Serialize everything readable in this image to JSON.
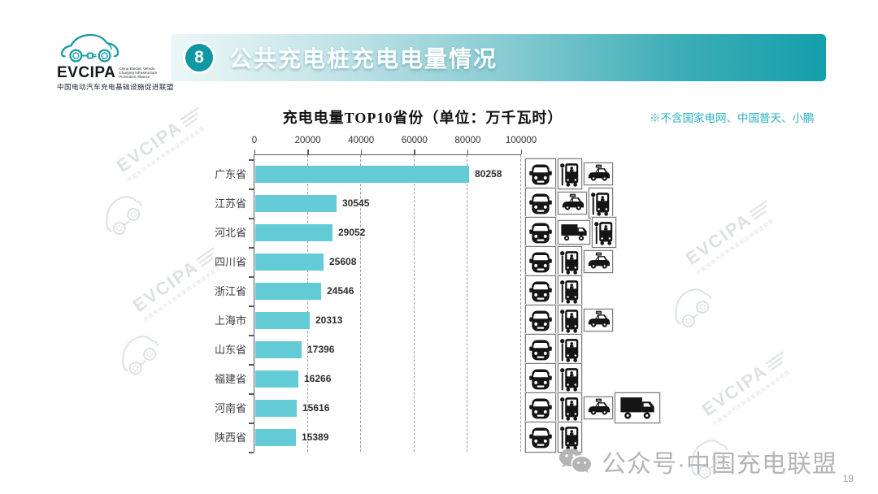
{
  "logo": {
    "brand": "EVCIPA",
    "tagline_lines": [
      "China Electric Vehicle",
      "Charging Infrastructure",
      "Promotion Alliance"
    ],
    "subtitle_cn": "中国电动汽车充电基础设施促进联盟"
  },
  "header": {
    "badge": "8",
    "title": "公共充电桩充电电量情况",
    "accent_color": "#0d98a3"
  },
  "note": "※不含国家电网、中国普天、小鹏",
  "chart_data": {
    "type": "bar",
    "orientation": "horizontal",
    "title": "充电电量TOP10省份（单位：万千瓦时）",
    "unit": "万千瓦时",
    "xlim": [
      0,
      100000
    ],
    "x_ticks": [
      0,
      20000,
      40000,
      60000,
      80000,
      100000
    ],
    "grid": "dashed-vertical",
    "bar_color": "#63cbd5",
    "categories": [
      "广东省",
      "江苏省",
      "河北省",
      "四川省",
      "浙江省",
      "上海市",
      "山东省",
      "福建省",
      "河南省",
      "陕西省"
    ],
    "values": [
      80258,
      30545,
      29052,
      25608,
      24546,
      20313,
      17396,
      16266,
      15616,
      15389
    ],
    "rows": [
      {
        "province": "广东省",
        "value": 80258,
        "icons": [
          "car",
          "bus",
          "taxi"
        ]
      },
      {
        "province": "江苏省",
        "value": 30545,
        "icons": [
          "car",
          "taxi",
          "bus"
        ]
      },
      {
        "province": "河北省",
        "value": 29052,
        "icons": [
          "car",
          "truck",
          "bus"
        ]
      },
      {
        "province": "四川省",
        "value": 25608,
        "icons": [
          "car",
          "bus",
          "taxi"
        ]
      },
      {
        "province": "浙江省",
        "value": 24546,
        "icons": [
          "car",
          "bus"
        ]
      },
      {
        "province": "上海市",
        "value": 20313,
        "icons": [
          "car",
          "bus",
          "taxi"
        ]
      },
      {
        "province": "山东省",
        "value": 17396,
        "icons": [
          "car",
          "bus"
        ]
      },
      {
        "province": "福建省",
        "value": 16266,
        "icons": [
          "car",
          "bus"
        ]
      },
      {
        "province": "河南省",
        "value": 15616,
        "icons": [
          "car",
          "bus",
          "taxi",
          "truck_large"
        ]
      },
      {
        "province": "陕西省",
        "value": 15389,
        "icons": [
          "car",
          "bus"
        ]
      }
    ]
  },
  "background_watermark": {
    "text": "EVCIPA",
    "subtext": "中国电动汽车充电基础设施促进联盟"
  },
  "footer": {
    "wechat_label": "公众号·中国充电联盟",
    "page_number": "19"
  }
}
